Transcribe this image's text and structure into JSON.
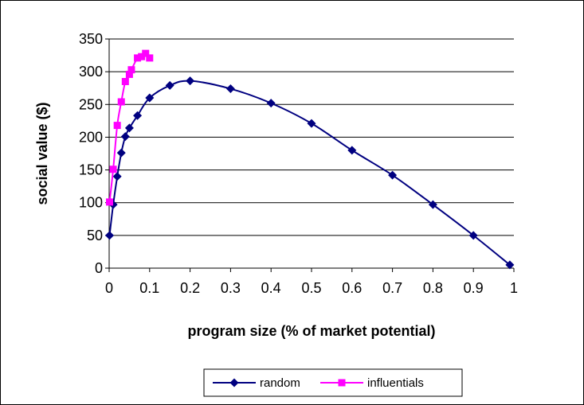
{
  "chart_data": {
    "type": "line",
    "xlabel": "program size (% of market potential)",
    "ylabel": "social value ($)",
    "xlim": [
      0,
      1
    ],
    "ylim": [
      0,
      350
    ],
    "x_ticks": [
      "0",
      "0.1",
      "0.2",
      "0.3",
      "0.4",
      "0.5",
      "0.6",
      "0.7",
      "0.8",
      "0.9",
      "1"
    ],
    "y_ticks": [
      "0",
      "50",
      "100",
      "150",
      "200",
      "250",
      "300",
      "350"
    ],
    "grid": "horizontal",
    "legend_position": "bottom",
    "series": [
      {
        "name": "random",
        "color": "#000080",
        "marker": "diamond",
        "points": [
          [
            0.001,
            50
          ],
          [
            0.01,
            97
          ],
          [
            0.02,
            140
          ],
          [
            0.03,
            176
          ],
          [
            0.04,
            201
          ],
          [
            0.05,
            214
          ],
          [
            0.07,
            233
          ],
          [
            0.1,
            260
          ],
          [
            0.15,
            279
          ],
          [
            0.2,
            286
          ],
          [
            0.3,
            274
          ],
          [
            0.4,
            252
          ],
          [
            0.5,
            221
          ],
          [
            0.6,
            180
          ],
          [
            0.7,
            142
          ],
          [
            0.8,
            97
          ],
          [
            0.9,
            50
          ],
          [
            0.99,
            5
          ]
        ]
      },
      {
        "name": "influentials",
        "color": "#FF00FF",
        "marker": "square",
        "points": [
          [
            0.001,
            101
          ],
          [
            0.01,
            151
          ],
          [
            0.02,
            218
          ],
          [
            0.03,
            254
          ],
          [
            0.04,
            285
          ],
          [
            0.05,
            296
          ],
          [
            0.055,
            303
          ],
          [
            0.07,
            321
          ],
          [
            0.08,
            323
          ],
          [
            0.09,
            328
          ],
          [
            0.1,
            321
          ]
        ]
      }
    ]
  }
}
